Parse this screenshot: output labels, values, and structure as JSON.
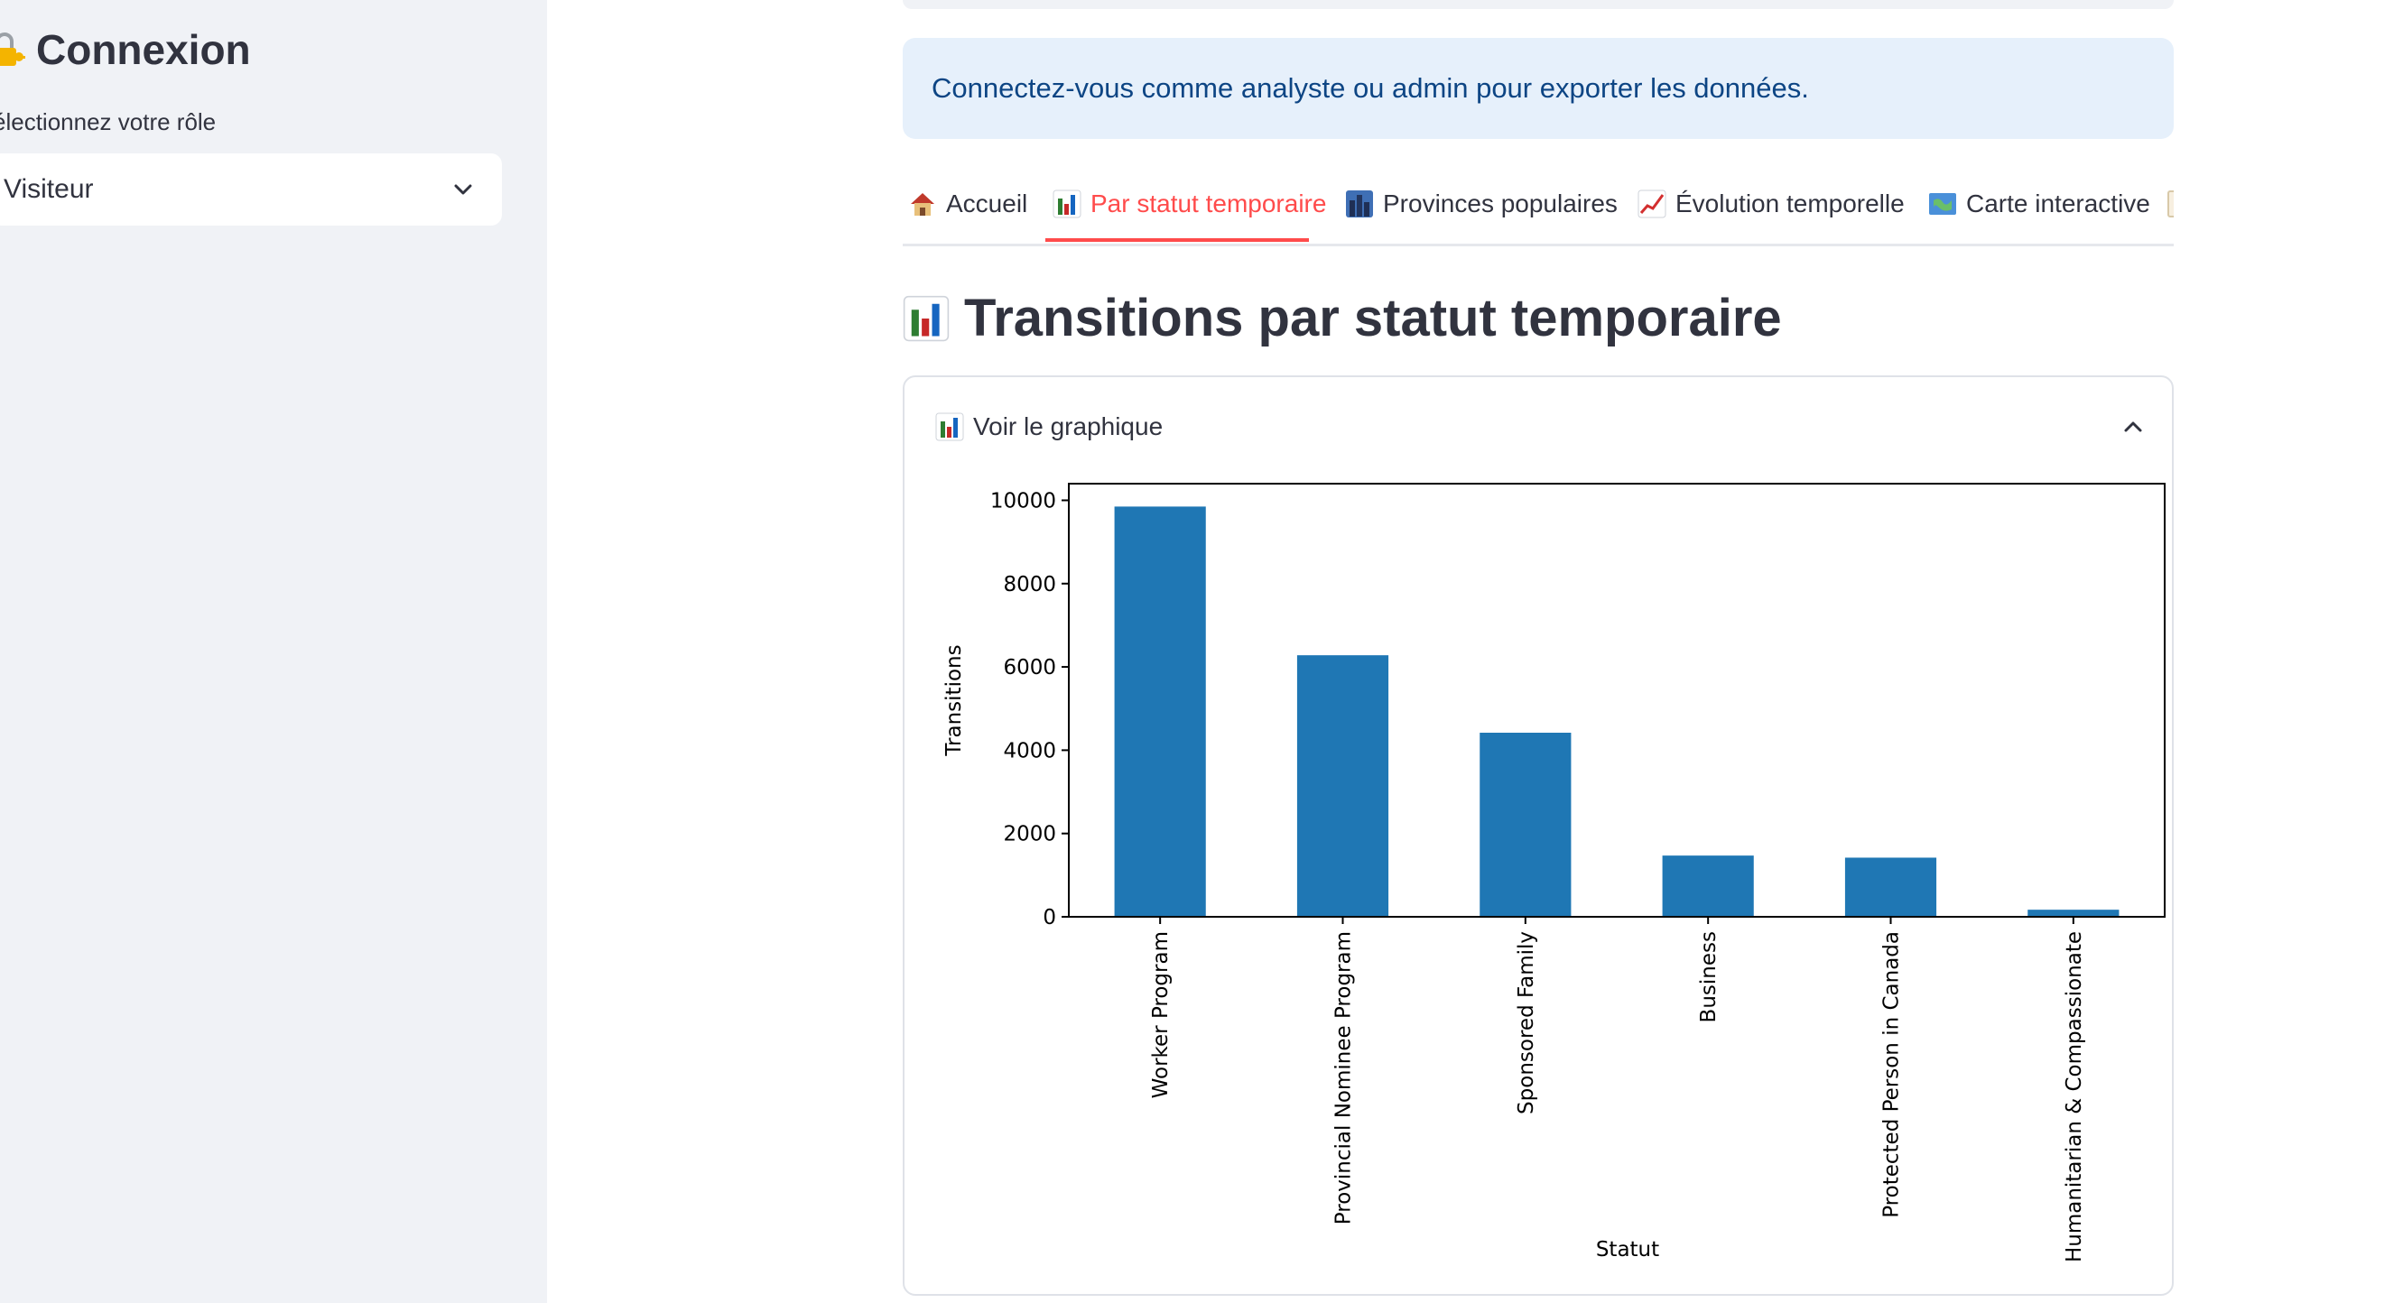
{
  "sidebar": {
    "title": "Connexion",
    "role_label": "électionnez votre rôle",
    "role_value": "Visiteur"
  },
  "info_message": "Connectez-vous comme analyste ou admin pour exporter les données.",
  "tabs": [
    {
      "label": "Accueil",
      "icon": "house-icon"
    },
    {
      "label": "Par statut temporaire",
      "icon": "bar-chart-icon",
      "active": true
    },
    {
      "label": "Provinces populaires",
      "icon": "cityscape-icon"
    },
    {
      "label": "Évolution temporelle",
      "icon": "chart-increasing-icon"
    },
    {
      "label": "Carte interactive",
      "icon": "map-icon"
    }
  ],
  "section_title": "Transitions par statut temporaire",
  "expander": {
    "label": "Voir le graphique"
  },
  "colors": {
    "accent": "#ff4b4b",
    "bar": "#1f77b4",
    "info_bg": "#e6f0fb",
    "info_text": "#0d4584"
  },
  "chart_data": {
    "type": "bar",
    "categories": [
      "Worker Program",
      "Provincial Nominee Program",
      "Sponsored Family",
      "Business",
      "Protected Person in Canada",
      "Humanitarian & Compassionate"
    ],
    "values": [
      9850,
      6280,
      4420,
      1470,
      1420,
      170
    ],
    "xlabel": "Statut",
    "ylabel": "Transitions",
    "ylim": [
      0,
      10400
    ],
    "yticks": [
      0,
      2000,
      4000,
      6000,
      8000,
      10000
    ],
    "grid": false,
    "legend": "none"
  }
}
